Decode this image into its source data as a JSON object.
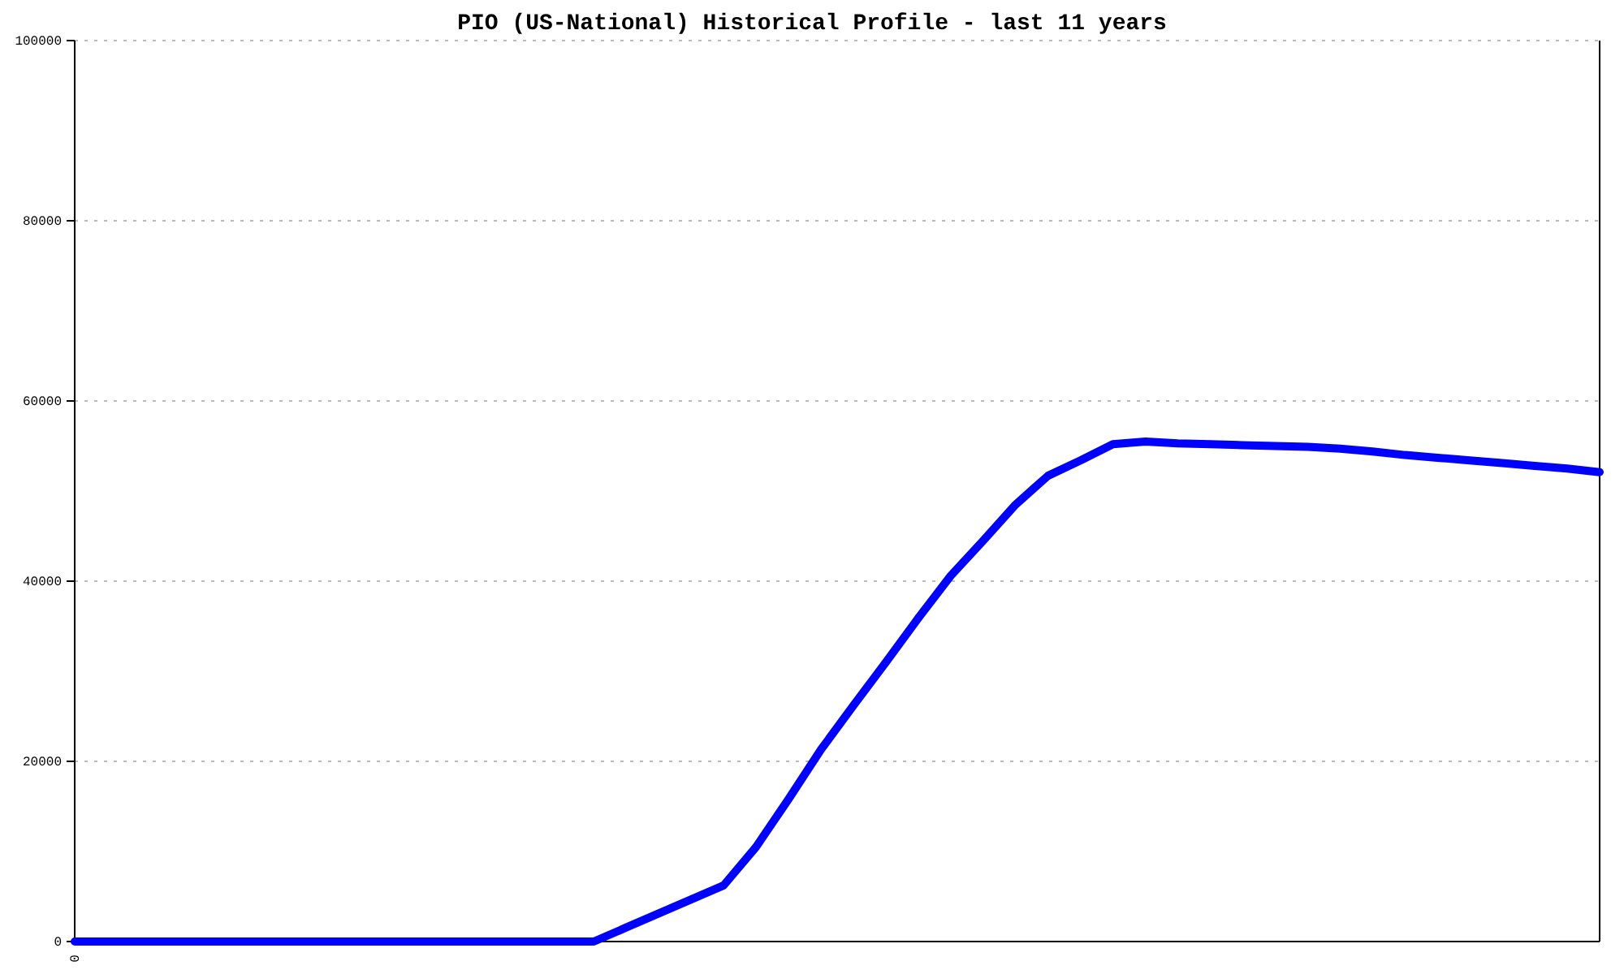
{
  "chart_data": {
    "type": "line",
    "title": "PIO (US-National) Historical Profile - last 11 years",
    "categories": [
      "0",
      null,
      null,
      null,
      null,
      null,
      null,
      null,
      null,
      null,
      null,
      null,
      null,
      null,
      null,
      null,
      null,
      null,
      null,
      null,
      null,
      null,
      null,
      null,
      null,
      null,
      null,
      null,
      null,
      null,
      null,
      null,
      null,
      null,
      null,
      null,
      null,
      null,
      null,
      null,
      null,
      null,
      null,
      null,
      null,
      null,
      null,
      null
    ],
    "series": [
      {
        "color": "#0000ff",
        "values": [
          0,
          0,
          0,
          0,
          0,
          0,
          0,
          0,
          0,
          0,
          0,
          0,
          0,
          0,
          0,
          0,
          0,
          1560,
          3120,
          4670,
          6230,
          10500,
          15800,
          21300,
          26200,
          31000,
          35900,
          40600,
          44500,
          48500,
          51700,
          53400,
          55200,
          55500,
          55300,
          55200,
          55100,
          55000,
          54900,
          54700,
          54400,
          54000,
          53700,
          53400,
          53100,
          52800,
          52500,
          52100
        ]
      }
    ],
    "ylim": [
      0,
      100000
    ],
    "yticks": [
      0,
      20000,
      40000,
      60000,
      80000,
      100000
    ],
    "grid": "y",
    "marker": "none",
    "line_style": "solid"
  }
}
